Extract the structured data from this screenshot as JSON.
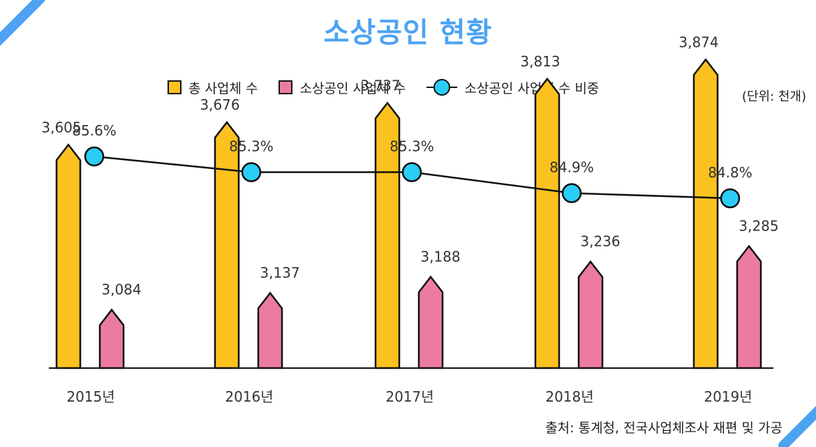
{
  "title": "소상공인 현황",
  "unit_label": "(단위: 천개)",
  "source": "출처: 통계청, 전국사업체조사 재편 및 가공",
  "legend": {
    "total": "총 사업체 수",
    "small": "소상공인 사업체 수",
    "ratio": "소상공인 사업체 수 비중"
  },
  "colors": {
    "title": "#4da3f2",
    "total": "#fbc21f",
    "small": "#ec7ba3",
    "ratio": "#29cdf5",
    "deco": "#4da3f2"
  },
  "chart_data": {
    "type": "bar",
    "categories": [
      "2015년",
      "2016년",
      "2017년",
      "2018년",
      "2019년"
    ],
    "series": [
      {
        "name": "총 사업체 수",
        "type": "bar",
        "values": [
          3605,
          3676,
          3737,
          3813,
          3874
        ],
        "labels": [
          "3,605",
          "3,676",
          "3,737",
          "3,813",
          "3,874"
        ]
      },
      {
        "name": "소상공인 사업체 수",
        "type": "bar",
        "values": [
          3084,
          3137,
          3188,
          3236,
          3285
        ],
        "labels": [
          "3,084",
          "3,137",
          "3,188",
          "3,236",
          "3,285"
        ]
      },
      {
        "name": "소상공인 사업체 수 비중",
        "type": "line",
        "values": [
          85.6,
          85.3,
          85.3,
          84.9,
          84.8
        ],
        "labels": [
          "85.6%",
          "85.3%",
          "85.3%",
          "84.9%",
          "84.8%"
        ]
      }
    ],
    "legend_position": "top",
    "grid": false
  }
}
